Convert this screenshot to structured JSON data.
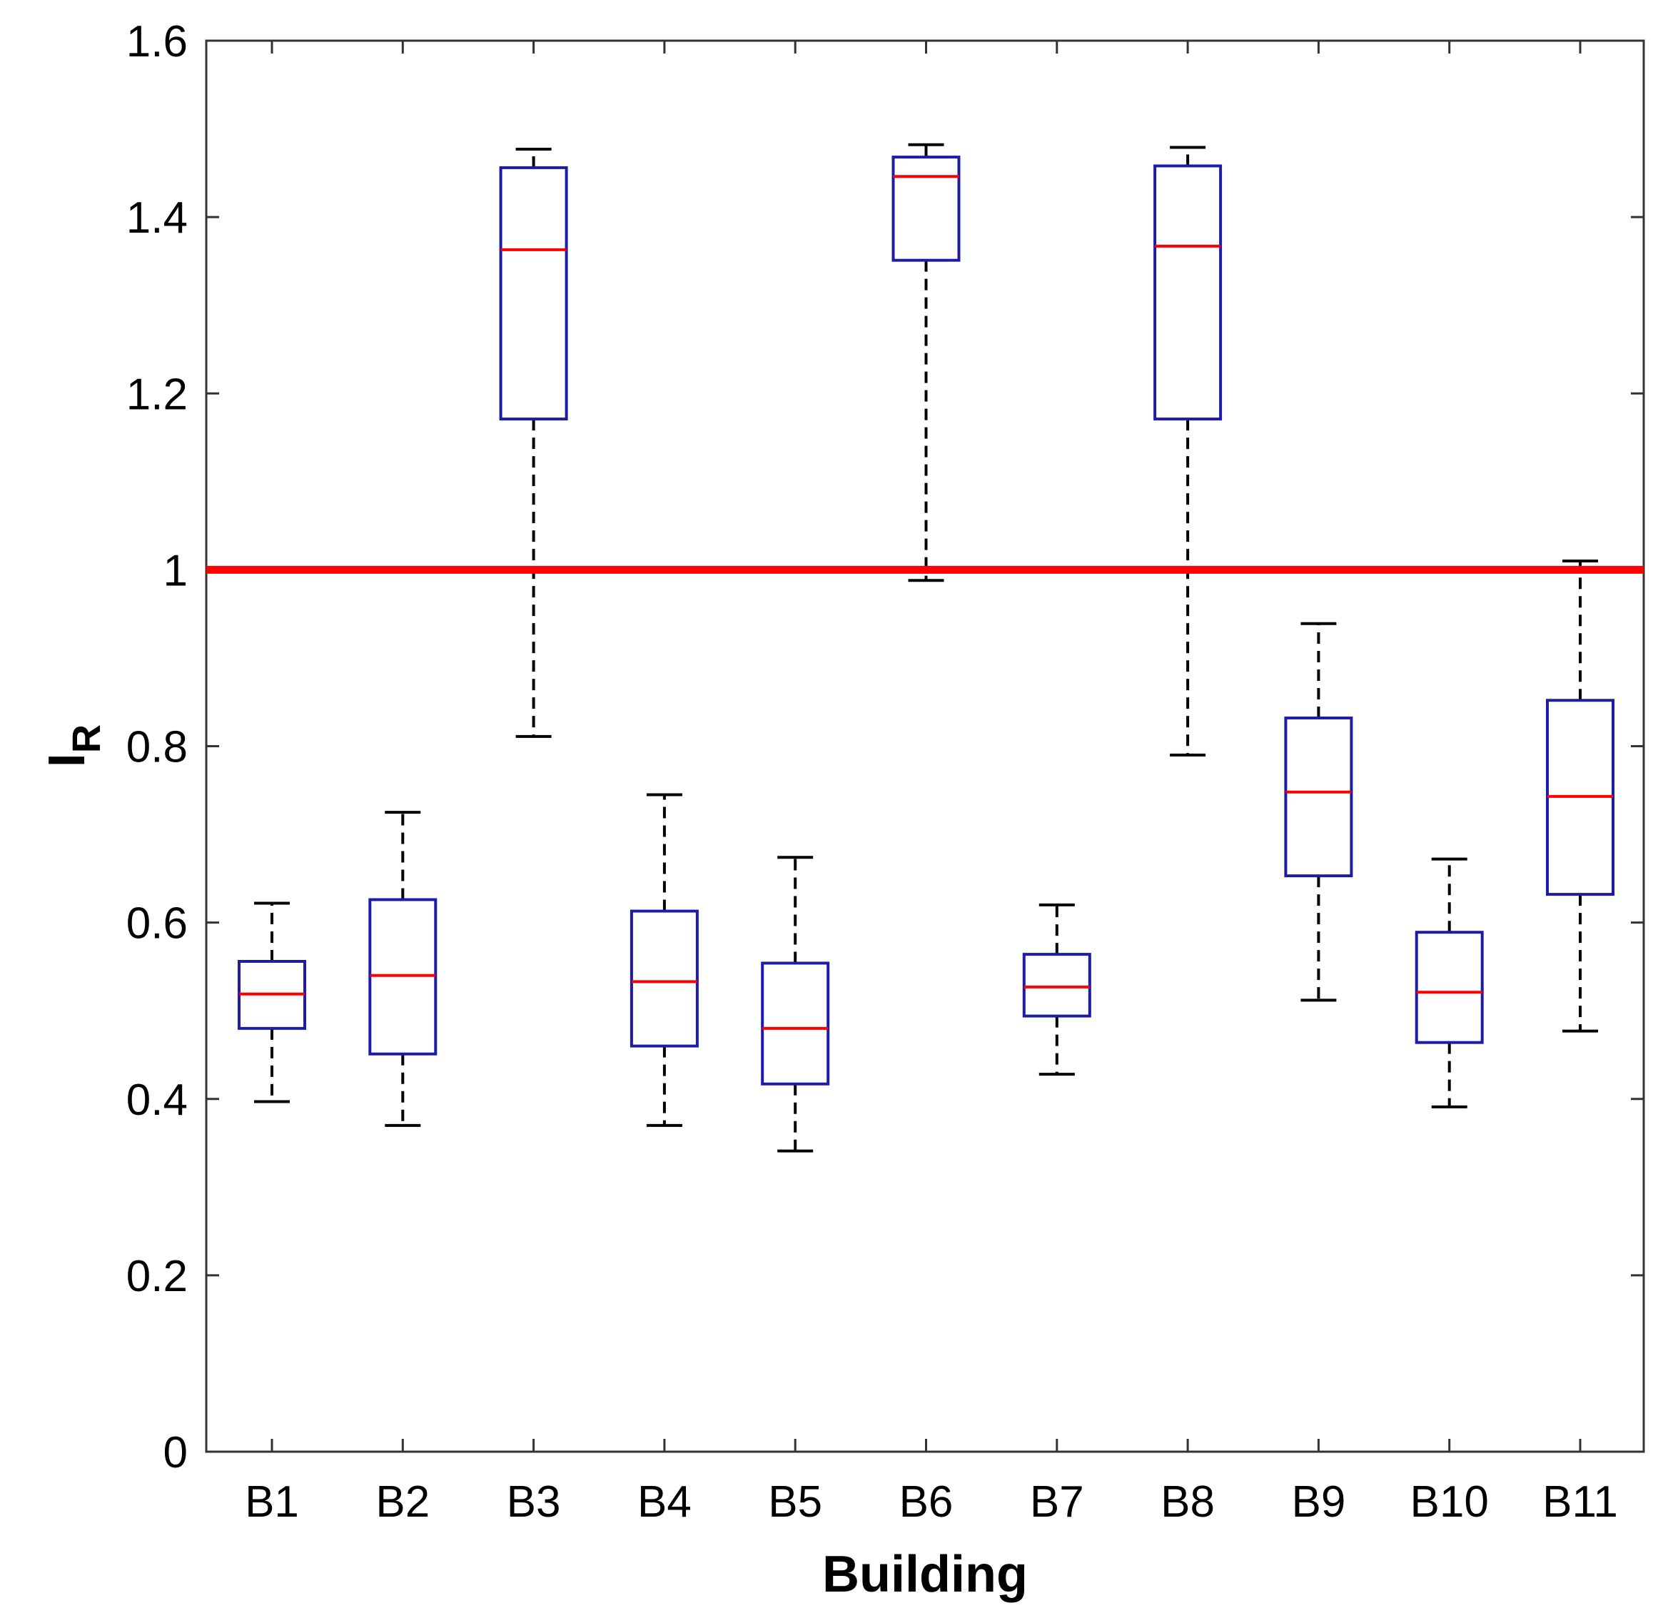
{
  "chart_data": {
    "type": "boxplot",
    "title": "",
    "xlabel": "Building",
    "ylabel": "I",
    "ylabel_subscript": "R",
    "ylim": [
      0,
      1.6
    ],
    "yticks": [
      0,
      0.2,
      0.4,
      0.6,
      0.8,
      1,
      1.2,
      1.4,
      1.6
    ],
    "ytick_labels": [
      "0",
      "0.2",
      "0.4",
      "0.6",
      "0.8",
      "1",
      "1.2",
      "1.4",
      "1.6"
    ],
    "categories": [
      "B1",
      "B2",
      "B3",
      "B4",
      "B5",
      "B6",
      "B7",
      "B8",
      "B9",
      "B10",
      "B11"
    ],
    "boxes": [
      {
        "name": "B1",
        "min": 0.397,
        "q1": 0.48,
        "median": 0.519,
        "q3": 0.556,
        "max": 0.622
      },
      {
        "name": "B2",
        "min": 0.37,
        "q1": 0.451,
        "median": 0.54,
        "q3": 0.626,
        "max": 0.725
      },
      {
        "name": "B3",
        "min": 0.811,
        "q1": 1.171,
        "median": 1.363,
        "q3": 1.456,
        "max": 1.477
      },
      {
        "name": "B4",
        "min": 0.37,
        "q1": 0.46,
        "median": 0.533,
        "q3": 0.613,
        "max": 0.745
      },
      {
        "name": "B5",
        "min": 0.341,
        "q1": 0.417,
        "median": 0.48,
        "q3": 0.554,
        "max": 0.674
      },
      {
        "name": "B6",
        "min": 0.988,
        "q1": 1.351,
        "median": 1.446,
        "q3": 1.468,
        "max": 1.482
      },
      {
        "name": "B7",
        "min": 0.428,
        "q1": 0.494,
        "median": 0.527,
        "q3": 0.564,
        "max": 0.62
      },
      {
        "name": "B8",
        "min": 0.79,
        "q1": 1.171,
        "median": 1.367,
        "q3": 1.458,
        "max": 1.479
      },
      {
        "name": "B9",
        "min": 0.512,
        "q1": 0.653,
        "median": 0.748,
        "q3": 0.832,
        "max": 0.939
      },
      {
        "name": "B10",
        "min": 0.391,
        "q1": 0.464,
        "median": 0.521,
        "q3": 0.589,
        "max": 0.672
      },
      {
        "name": "B11",
        "min": 0.477,
        "q1": 0.632,
        "median": 0.743,
        "q3": 0.852,
        "max": 1.01
      }
    ],
    "reference_line": {
      "y": 1.0,
      "color": "#ff0000"
    },
    "colors": {
      "box": "#1c1ca6",
      "median": "#ff0000",
      "whisker": "#000000",
      "axis": "#333333"
    },
    "grid": false
  }
}
